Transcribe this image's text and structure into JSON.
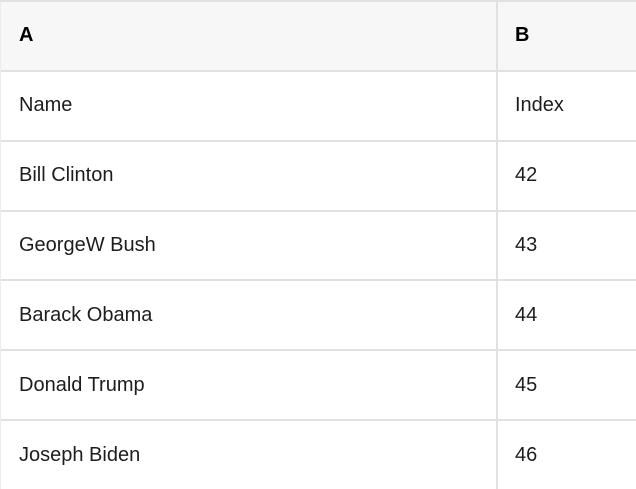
{
  "table": {
    "columns": [
      {
        "label": "A"
      },
      {
        "label": "B"
      }
    ],
    "rows": [
      {
        "a": "Name",
        "b": "Index"
      },
      {
        "a": "Bill Clinton",
        "b": "42"
      },
      {
        "a": "GeorgeW Bush",
        "b": "43"
      },
      {
        "a": "Barack Obama",
        "b": "44"
      },
      {
        "a": "Donald Trump",
        "b": "45"
      },
      {
        "a": "Joseph Biden",
        "b": "46"
      }
    ]
  },
  "colors": {
    "header_bg": "#f7f7f7",
    "row_bg": "#ffffff",
    "border": "#e1e1e1",
    "border_soft": "#ececec",
    "text": "#1d1d1f",
    "header_text": "#000000"
  }
}
